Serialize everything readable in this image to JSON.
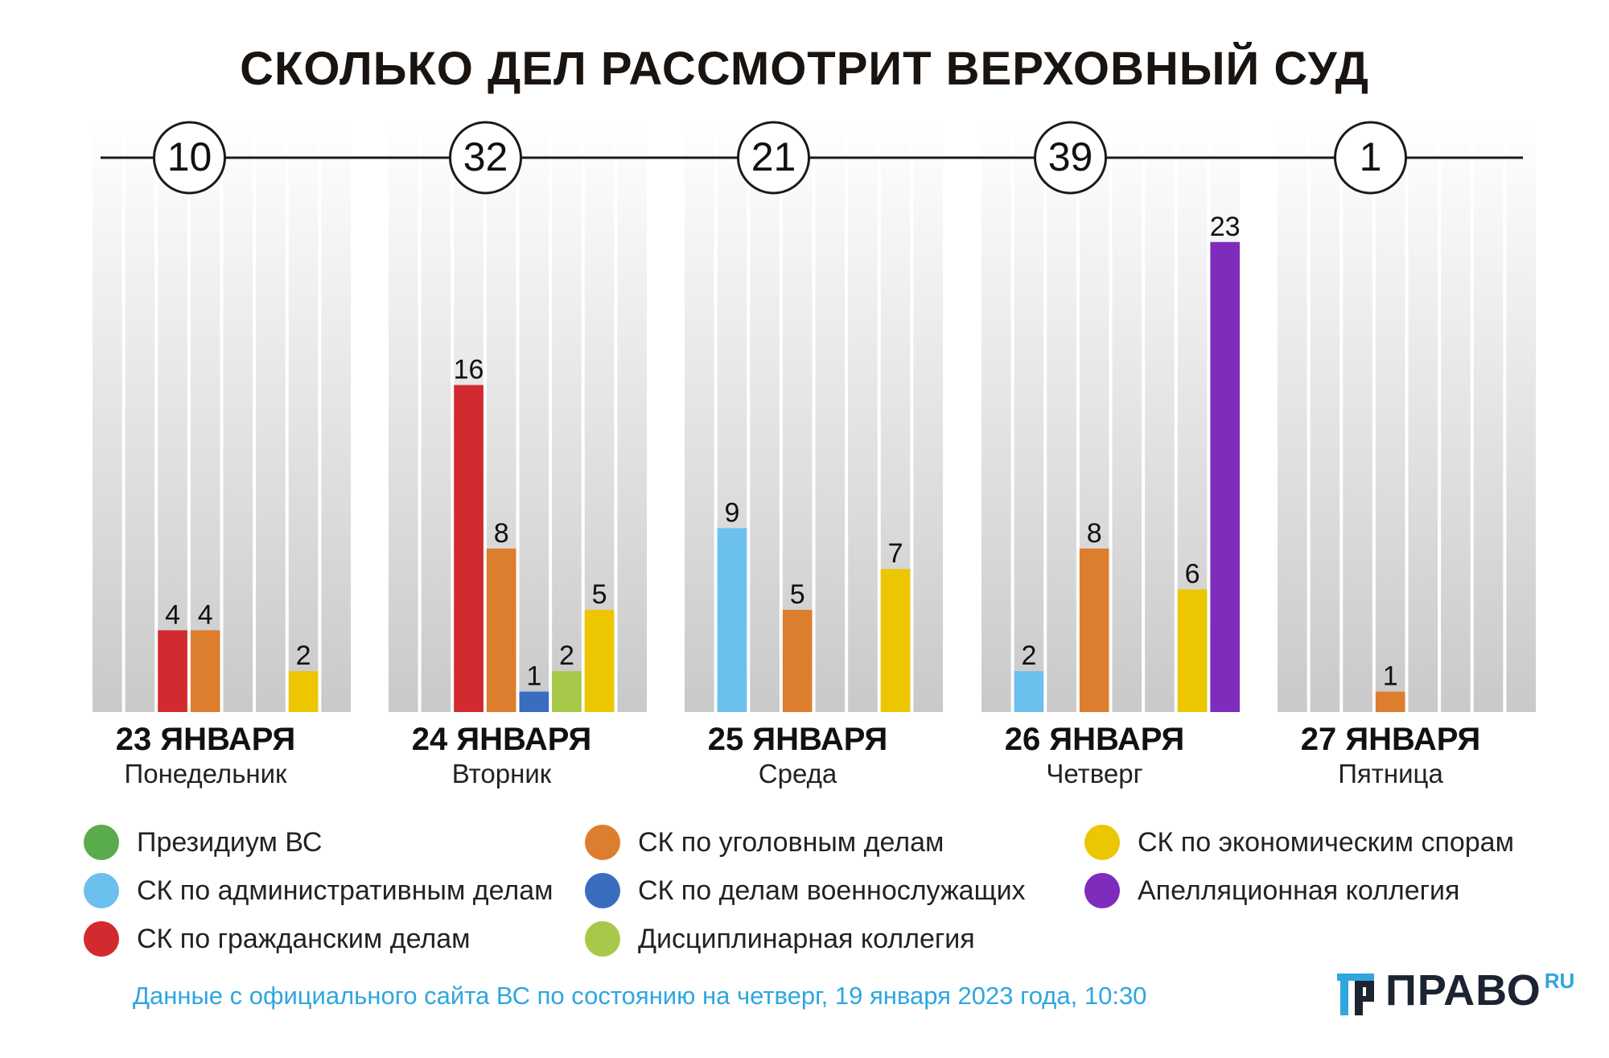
{
  "title": "СКОЛЬКО ДЕЛ РАССМОТРИТ ВЕРХОВНЫЙ СУД",
  "colors": {
    "presidium": "#5aab4b",
    "admin": "#6cc0ee",
    "civil": "#d12a2f",
    "criminal": "#dd7d2e",
    "military": "#3b6dbf",
    "disciplinary": "#a7c94a",
    "economic": "#ecc600",
    "appeal": "#7f2cbc"
  },
  "chart_data": {
    "type": "bar",
    "title": "СКОЛЬКО ДЕЛ РАССМОТРИТ ВЕРХОВНЫЙ СУД",
    "ylim": [
      0,
      23
    ],
    "slot_order": [
      "admin",
      "civil",
      "criminal",
      "military",
      "disciplinary",
      "economic",
      "appeal"
    ],
    "days": [
      {
        "date": "23 ЯНВАРЯ",
        "weekday": "Понедельник",
        "total": "10",
        "bars": [
          {
            "slot": "civil",
            "value": 4
          },
          {
            "slot": "criminal",
            "value": 4
          },
          {
            "slot": "economic",
            "value": 2
          }
        ]
      },
      {
        "date": "24 ЯНВАРЯ",
        "weekday": "Вторник",
        "total": "32",
        "bars": [
          {
            "slot": "civil",
            "value": 16
          },
          {
            "slot": "criminal",
            "value": 8
          },
          {
            "slot": "military",
            "value": 1
          },
          {
            "slot": "disciplinary",
            "value": 2
          },
          {
            "slot": "economic",
            "value": 5
          }
        ]
      },
      {
        "date": "25 ЯНВАРЯ",
        "weekday": "Среда",
        "total": "21",
        "bars": [
          {
            "slot": "admin",
            "value": 9
          },
          {
            "slot": "criminal",
            "value": 5
          },
          {
            "slot": "economic",
            "value": 7
          }
        ]
      },
      {
        "date": "26 ЯНВАРЯ",
        "weekday": "Четверг",
        "total": "39",
        "bars": [
          {
            "slot": "admin",
            "value": 2
          },
          {
            "slot": "criminal",
            "value": 8
          },
          {
            "slot": "economic",
            "value": 6
          },
          {
            "slot": "appeal",
            "value": 23
          }
        ]
      },
      {
        "date": "27 ЯНВАРЯ",
        "weekday": "Пятница",
        "total": "1",
        "bars": [
          {
            "slot": "criminal",
            "value": 1
          }
        ]
      }
    ]
  },
  "legend": [
    {
      "key": "presidium",
      "label": "Президиум ВС"
    },
    {
      "key": "admin",
      "label": "СК по административным делам"
    },
    {
      "key": "civil",
      "label": "СК по гражданским делам"
    },
    {
      "key": "criminal",
      "label": "СК по уголовным делам"
    },
    {
      "key": "military",
      "label": "СК по делам военнослужащих"
    },
    {
      "key": "disciplinary",
      "label": "Дисциплинарная коллегия"
    },
    {
      "key": "economic",
      "label": "СК по экономическим спорам"
    },
    {
      "key": "appeal",
      "label": "Апелляционная коллегия"
    }
  ],
  "note": "Данные с официального сайта ВС по состоянию на четверг, 19 января 2023 года, 10:30",
  "logo": {
    "word": "ПРАВО",
    "sup": "RU"
  }
}
